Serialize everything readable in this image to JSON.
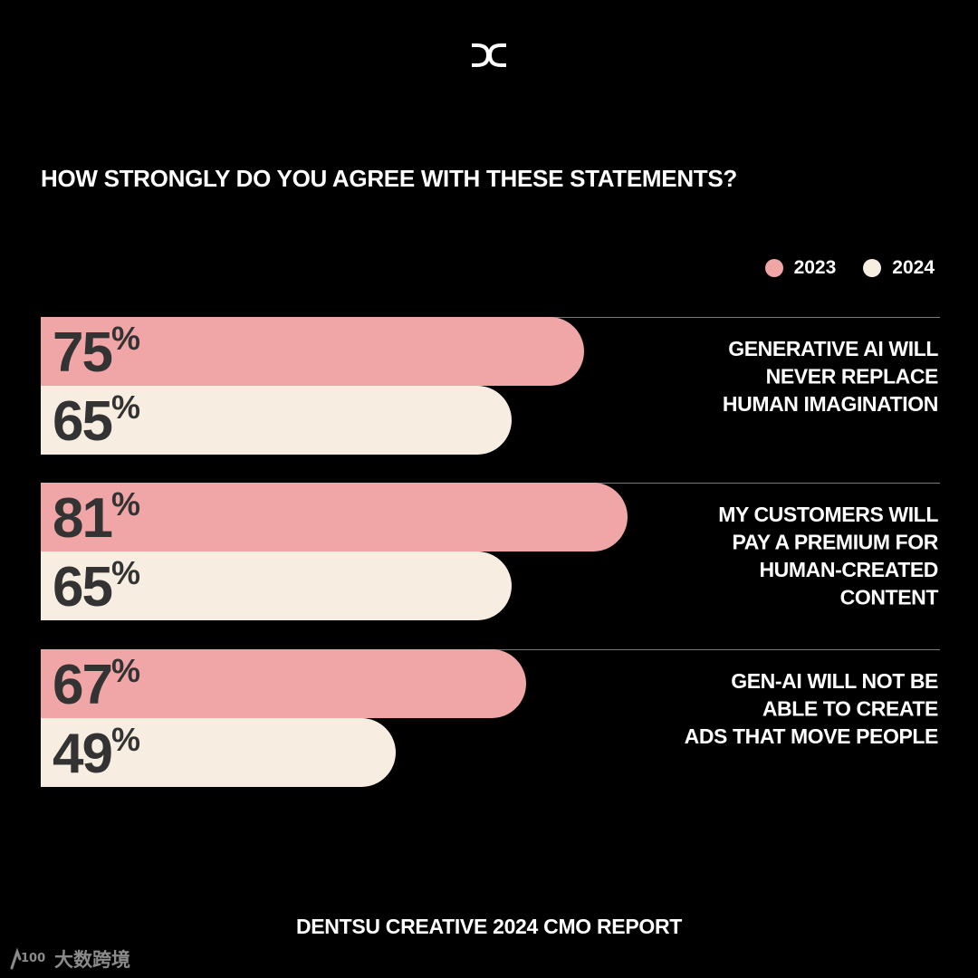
{
  "brand": {
    "logo_icon": "dc-logo-icon"
  },
  "colors": {
    "background": "#000000",
    "bar_2023": "#F0A5A6",
    "bar_2024": "#F7EEE1",
    "divider": "#7A7A7A",
    "value_text": "#333333"
  },
  "chart_data": {
    "type": "bar",
    "orientation": "horizontal",
    "title": "HOW STRONGLY DO YOU AGREE WITH THESE STATEMENTS?",
    "categories": [
      [
        "GENERATIVE AI WILL",
        "NEVER REPLACE",
        "HUMAN IMAGINATION"
      ],
      [
        "MY CUSTOMERS WILL",
        "PAY A PREMIUM FOR",
        "HUMAN-CREATED",
        "CONTENT"
      ],
      [
        "GEN-AI WILL NOT BE",
        "ABLE TO CREATE",
        "ADS THAT MOVE PEOPLE"
      ]
    ],
    "series": [
      {
        "name": "2023",
        "values": [
          75,
          81,
          67
        ],
        "color": "#F0A5A6"
      },
      {
        "name": "2024",
        "values": [
          65,
          65,
          49
        ],
        "color": "#F7EEE1"
      }
    ],
    "unit": "%",
    "xlim": [
      0,
      100
    ],
    "legend": "top-right",
    "grid": false
  },
  "footer": {
    "source": "DENTSU CREATIVE 2024 CMO REPORT"
  },
  "watermark": {
    "mark": "100",
    "text": "大数跨境"
  }
}
